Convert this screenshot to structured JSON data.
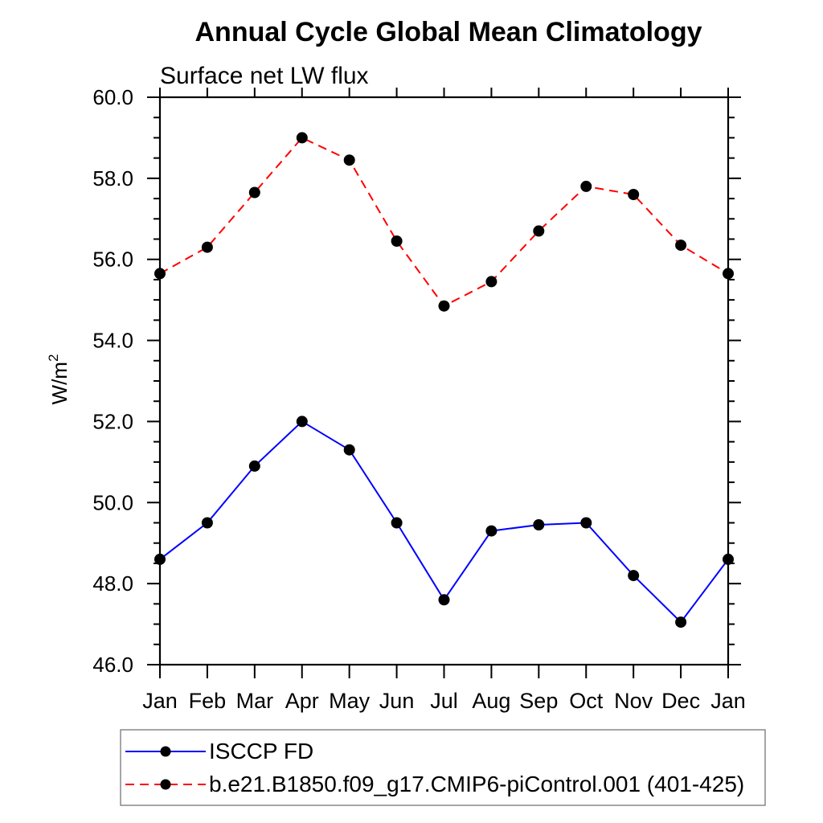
{
  "page": {
    "background_color": "#ffffff",
    "text_color": "#000000"
  },
  "chart_data": {
    "type": "line",
    "title": "Annual Cycle Global Mean Climatology",
    "subtitle": "Surface net LW flux",
    "ylabel": "W/m²",
    "categories": [
      "Jan",
      "Feb",
      "Mar",
      "Apr",
      "May",
      "Jun",
      "Jul",
      "Aug",
      "Sep",
      "Oct",
      "Nov",
      "Dec",
      "Jan"
    ],
    "ylim": [
      46.0,
      60.0
    ],
    "ytick_major_interval": 2.0,
    "ytick_minor_interval": 0.5,
    "ytick_labels": [
      "46.0",
      "48.0",
      "50.0",
      "52.0",
      "54.0",
      "56.0",
      "58.0",
      "60.0"
    ],
    "grid": false,
    "legend_position": "bottom-left",
    "legend_border_color": "#808080",
    "axis_color": "#000000",
    "series": [
      {
        "name": "ISCCP FD",
        "line_color": "#0000ff",
        "line_style": "solid",
        "marker": "filled-circle",
        "marker_color": "#000000",
        "values": [
          48.6,
          49.5,
          50.9,
          52.0,
          51.3,
          49.5,
          47.6,
          49.3,
          49.45,
          49.5,
          48.2,
          47.05,
          48.6
        ]
      },
      {
        "name": "b.e21.B1850.f09_g17.CMIP6-piControl.001 (401-425)",
        "line_color": "#ff0000",
        "line_style": "dashed",
        "marker": "filled-circle",
        "marker_color": "#000000",
        "values": [
          55.65,
          56.3,
          57.65,
          59.0,
          58.45,
          56.45,
          54.85,
          55.45,
          56.7,
          57.8,
          57.6,
          56.35,
          55.65
        ]
      }
    ]
  }
}
